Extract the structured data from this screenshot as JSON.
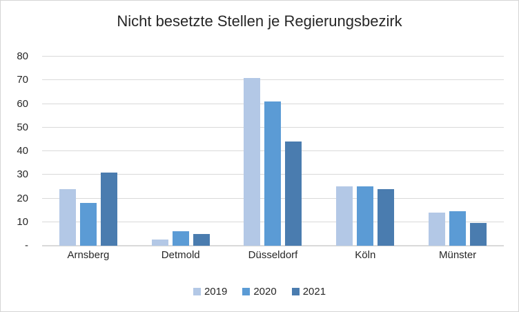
{
  "frame": {
    "background_color": "#FFFFFF",
    "border_color": "#D5D5D5"
  },
  "chart_data": {
    "type": "bar",
    "title": "Nicht besetzte Stellen je Regierungsbezirk",
    "xlabel": "",
    "ylabel": "",
    "categories": [
      "Arnsberg",
      "Detmold",
      "Düsseldorf",
      "Köln",
      "Münster"
    ],
    "series": [
      {
        "name": "2019",
        "color": "#B3C8E6",
        "values": [
          24,
          2.5,
          71,
          25,
          14
        ]
      },
      {
        "name": "2020",
        "color": "#5B9BD5",
        "values": [
          18,
          6,
          61,
          25,
          14.5
        ]
      },
      {
        "name": "2021",
        "color": "#4A7CAF",
        "values": [
          31,
          5,
          44,
          24,
          9.5
        ]
      }
    ],
    "ylim": [
      0,
      80
    ],
    "ytick_step": 10,
    "ytick_labels": [
      "-",
      "10",
      "20",
      "30",
      "40",
      "50",
      "60",
      "70",
      "80"
    ],
    "grid": true,
    "gridline_color": "#D9D9D9",
    "axis_line_color": "#D9D9D9",
    "text_color": "#262626",
    "legend_position": "bottom"
  }
}
